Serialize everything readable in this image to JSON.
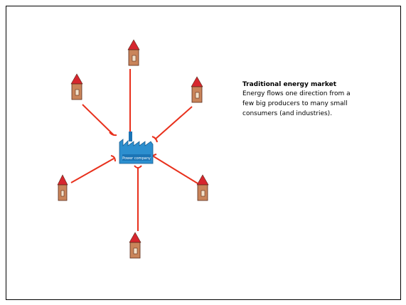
{
  "slide": {
    "title": "Traditional energy market",
    "body_lines": [
      "Energy flows one direction from a",
      "few big producers to many small",
      "consumers (and industries)."
    ],
    "factory_label": "Power company"
  }
}
